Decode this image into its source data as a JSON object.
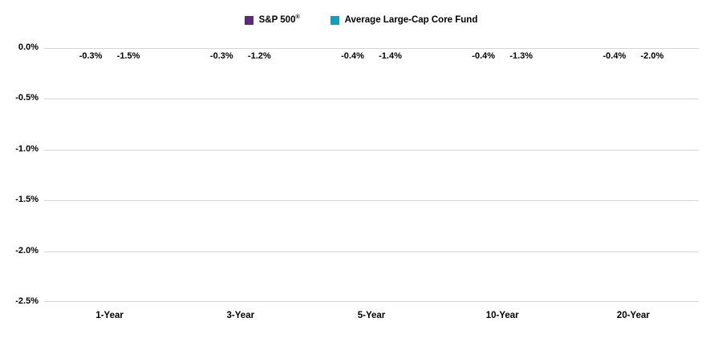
{
  "chart_data": {
    "type": "bar",
    "title": "",
    "categories": [
      "1-Year",
      "3-Year",
      "5-Year",
      "10-Year",
      "20-Year"
    ],
    "series": [
      {
        "name": "Average Large-Cap Core Fund",
        "color": "#12A0BC",
        "values": [
          -0.3,
          -0.3,
          -0.4,
          -0.4,
          -0.4
        ],
        "labels": [
          "-0.3%",
          "-0.3%",
          "-0.4%",
          "-0.4%",
          "-0.4%"
        ]
      },
      {
        "name": "S&P 500",
        "reg_mark": "®",
        "color": "#5D2A78",
        "values": [
          -1.5,
          -1.2,
          -1.4,
          -1.3,
          -2.0
        ],
        "labels": [
          "-1.5%",
          "-1.2%",
          "-1.4%",
          "-1.3%",
          "-2.0%"
        ]
      }
    ],
    "legend": [
      {
        "label": "S&P 500",
        "reg_mark": "®",
        "color": "#5D2A78"
      },
      {
        "label": "Average Large-Cap Core Fund",
        "color": "#12A0BC"
      }
    ],
    "legend_position": "top-center",
    "grid": true,
    "xlabel": "",
    "ylabel": "",
    "y_axis": {
      "min": -2.5,
      "max": 0.0,
      "step": 0.5,
      "ticks": [
        "0.0%",
        "-0.5%",
        "-1.0%",
        "-1.5%",
        "-2.0%",
        "-2.5%"
      ]
    },
    "colors": {
      "gridline": "#d6d6d6",
      "text": "#000000",
      "background": "#ffffff"
    }
  }
}
